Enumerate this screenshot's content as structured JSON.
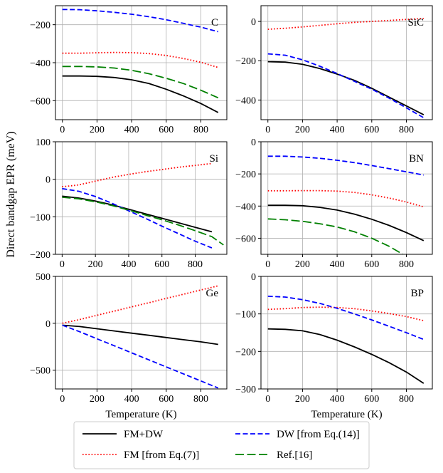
{
  "figure": {
    "ylabel": "Direct bandgap EPR (meV)",
    "xlabel": "Temperature (K)"
  },
  "series_styles": {
    "fm_dw": {
      "label": "FM+DW",
      "color": "#000000",
      "dash": "solid"
    },
    "fm": {
      "label": "FM [from Eq.(7)]",
      "color": "#ff0000",
      "dash": "dotted"
    },
    "dw": {
      "label": "DW [from Eq.(14)]",
      "color": "#0000ff",
      "dash": "dashed"
    },
    "ref": {
      "label": "Ref.[16]",
      "color": "#008000",
      "dash": "longdash"
    }
  },
  "legend": {
    "placement": "bottom-center",
    "entries": [
      "FM+DW",
      "FM [from Eq.(7)]",
      "DW [from Eq.(14)]",
      "Ref.[16]"
    ]
  },
  "chart_data": [
    {
      "type": "line",
      "title": "C",
      "xlim": [
        -40,
        950
      ],
      "ylim": [
        -700,
        -100
      ],
      "xticks": [
        0,
        200,
        400,
        600,
        800
      ],
      "yticks": [
        -200,
        -400,
        -600
      ],
      "xlabel": "",
      "ylabel": "",
      "series": [
        {
          "key": "fm_dw",
          "name": "FM+DW",
          "x": [
            0,
            100,
            200,
            300,
            400,
            500,
            600,
            700,
            800,
            900
          ],
          "y": [
            -470,
            -470,
            -472,
            -478,
            -490,
            -510,
            -540,
            -575,
            -615,
            -662
          ]
        },
        {
          "key": "fm",
          "name": "FM [from Eq.(7)]",
          "x": [
            0,
            100,
            200,
            300,
            400,
            500,
            600,
            700,
            800,
            900
          ],
          "y": [
            -350,
            -350,
            -348,
            -346,
            -347,
            -352,
            -362,
            -378,
            -398,
            -425
          ]
        },
        {
          "key": "dw",
          "name": "DW [from Eq.(14)]",
          "x": [
            0,
            100,
            200,
            300,
            400,
            500,
            600,
            700,
            800,
            900
          ],
          "y": [
            -120,
            -121,
            -127,
            -135,
            -145,
            -158,
            -174,
            -193,
            -213,
            -237
          ]
        },
        {
          "key": "ref",
          "name": "Ref.[16]",
          "x": [
            0,
            100,
            200,
            300,
            400,
            500,
            600,
            700,
            800,
            900
          ],
          "y": [
            -420,
            -420,
            -422,
            -428,
            -440,
            -458,
            -482,
            -510,
            -545,
            -585
          ]
        }
      ]
    },
    {
      "type": "line",
      "title": "SiC",
      "xlim": [
        -40,
        950
      ],
      "ylim": [
        -500,
        80
      ],
      "xticks": [
        0,
        200,
        400,
        600,
        800
      ],
      "yticks": [
        0,
        -200,
        -400
      ],
      "xlabel": "",
      "ylabel": "",
      "series": [
        {
          "key": "fm_dw",
          "name": "FM+DW",
          "x": [
            0,
            100,
            200,
            300,
            400,
            500,
            600,
            700,
            800,
            900
          ],
          "y": [
            -205,
            -207,
            -218,
            -240,
            -268,
            -300,
            -340,
            -385,
            -430,
            -475
          ]
        },
        {
          "key": "fm",
          "name": "FM [from Eq.(7)]",
          "x": [
            0,
            100,
            200,
            300,
            400,
            500,
            600,
            700,
            800,
            900
          ],
          "y": [
            -40,
            -35,
            -28,
            -20,
            -12,
            -5,
            0,
            5,
            10,
            15
          ]
        },
        {
          "key": "dw",
          "name": "DW [from Eq.(14)]",
          "x": [
            0,
            100,
            200,
            300,
            400,
            500,
            600,
            700,
            800,
            900
          ],
          "y": [
            -165,
            -172,
            -195,
            -228,
            -265,
            -305,
            -345,
            -390,
            -440,
            -490
          ]
        }
      ]
    },
    {
      "type": "line",
      "title": "Si",
      "xlim": [
        -40,
        990
      ],
      "ylim": [
        -200,
        100
      ],
      "xticks": [
        0,
        200,
        400,
        600,
        800
      ],
      "yticks": [
        100,
        0,
        -100,
        -200
      ],
      "xlabel": "",
      "ylabel": "",
      "series": [
        {
          "key": "fm_dw",
          "name": "FM+DW",
          "x": [
            0,
            100,
            200,
            300,
            400,
            500,
            600,
            700,
            800,
            900
          ],
          "y": [
            -45,
            -50,
            -58,
            -68,
            -80,
            -92,
            -104,
            -116,
            -128,
            -140
          ]
        },
        {
          "key": "fm",
          "name": "FM [from Eq.(7)]",
          "x": [
            0,
            100,
            200,
            300,
            400,
            500,
            600,
            700,
            800,
            900
          ],
          "y": [
            -20,
            -15,
            -5,
            5,
            13,
            20,
            26,
            32,
            37,
            42
          ]
        },
        {
          "key": "dw",
          "name": "DW [from Eq.(14)]",
          "x": [
            0,
            100,
            200,
            300,
            400,
            500,
            600,
            700,
            800,
            900
          ],
          "y": [
            -25,
            -32,
            -46,
            -64,
            -84,
            -104,
            -125,
            -145,
            -165,
            -183
          ]
        },
        {
          "key": "ref",
          "name": "Ref.[16]",
          "x": [
            0,
            100,
            200,
            300,
            400,
            500,
            600,
            700,
            800,
            900,
            970
          ],
          "y": [
            -48,
            -52,
            -60,
            -70,
            -82,
            -95,
            -108,
            -122,
            -137,
            -153,
            -175
          ]
        }
      ]
    },
    {
      "type": "line",
      "title": "BN",
      "xlim": [
        -40,
        950
      ],
      "ylim": [
        -700,
        0
      ],
      "xticks": [
        0,
        200,
        400,
        600,
        800
      ],
      "yticks": [
        0,
        -200,
        -400,
        -600
      ],
      "xlabel": "",
      "ylabel": "",
      "series": [
        {
          "key": "fm_dw",
          "name": "FM+DW",
          "x": [
            0,
            100,
            200,
            300,
            400,
            500,
            600,
            700,
            800,
            900
          ],
          "y": [
            -395,
            -395,
            -398,
            -408,
            -425,
            -450,
            -482,
            -520,
            -565,
            -615
          ]
        },
        {
          "key": "fm",
          "name": "FM [from Eq.(7)]",
          "x": [
            0,
            100,
            200,
            300,
            400,
            500,
            600,
            700,
            800,
            900
          ],
          "y": [
            -305,
            -305,
            -304,
            -304,
            -307,
            -315,
            -330,
            -350,
            -375,
            -405
          ]
        },
        {
          "key": "dw",
          "name": "DW [from Eq.(14)]",
          "x": [
            0,
            100,
            200,
            300,
            400,
            500,
            600,
            700,
            800,
            900
          ],
          "y": [
            -90,
            -90,
            -95,
            -103,
            -115,
            -130,
            -148,
            -167,
            -187,
            -207
          ]
        },
        {
          "key": "ref",
          "name": "Ref.[16]",
          "x": [
            0,
            100,
            200,
            300,
            400,
            500,
            600,
            700,
            780
          ],
          "y": [
            -480,
            -485,
            -495,
            -510,
            -530,
            -560,
            -600,
            -650,
            -700
          ]
        }
      ]
    },
    {
      "type": "line",
      "title": "Ge",
      "xlim": [
        -40,
        950
      ],
      "ylim": [
        -700,
        500
      ],
      "xticks": [
        0,
        200,
        400,
        600,
        800
      ],
      "yticks": [
        500,
        0,
        -500
      ],
      "xlabel": "Temperature (K)",
      "ylabel": "",
      "series": [
        {
          "key": "fm_dw",
          "name": "FM+DW",
          "x": [
            0,
            100,
            200,
            300,
            400,
            500,
            600,
            700,
            800,
            900
          ],
          "y": [
            -20,
            -35,
            -58,
            -82,
            -105,
            -128,
            -152,
            -175,
            -198,
            -225
          ]
        },
        {
          "key": "fm",
          "name": "FM [from Eq.(7)]",
          "x": [
            0,
            100,
            200,
            300,
            400,
            500,
            600,
            700,
            800,
            900
          ],
          "y": [
            0,
            40,
            85,
            130,
            175,
            220,
            265,
            310,
            355,
            400
          ]
        },
        {
          "key": "dw",
          "name": "DW [from Eq.(14)]",
          "x": [
            0,
            100,
            200,
            300,
            400,
            500,
            600,
            700,
            800,
            900
          ],
          "y": [
            -20,
            -90,
            -165,
            -240,
            -315,
            -390,
            -465,
            -540,
            -615,
            -690
          ]
        }
      ]
    },
    {
      "type": "line",
      "title": "BP",
      "xlim": [
        -40,
        950
      ],
      "ylim": [
        -300,
        0
      ],
      "xticks": [
        0,
        200,
        400,
        600,
        800
      ],
      "yticks": [
        0,
        -100,
        -200,
        -300
      ],
      "xlabel": "Temperature (K)",
      "ylabel": "",
      "series": [
        {
          "key": "fm_dw",
          "name": "FM+DW",
          "x": [
            0,
            100,
            200,
            300,
            400,
            500,
            600,
            700,
            800,
            900
          ],
          "y": [
            -140,
            -141,
            -145,
            -155,
            -170,
            -188,
            -208,
            -230,
            -255,
            -285
          ]
        },
        {
          "key": "fm",
          "name": "FM [from Eq.(7)]",
          "x": [
            0,
            100,
            200,
            300,
            400,
            500,
            600,
            700,
            800,
            900
          ],
          "y": [
            -88,
            -86,
            -83,
            -82,
            -83,
            -86,
            -92,
            -99,
            -107,
            -118
          ]
        },
        {
          "key": "dw",
          "name": "DW [from Eq.(14)]",
          "x": [
            0,
            100,
            200,
            300,
            400,
            500,
            600,
            700,
            800,
            900
          ],
          "y": [
            -53,
            -55,
            -62,
            -72,
            -85,
            -100,
            -116,
            -133,
            -150,
            -168
          ]
        }
      ]
    }
  ]
}
